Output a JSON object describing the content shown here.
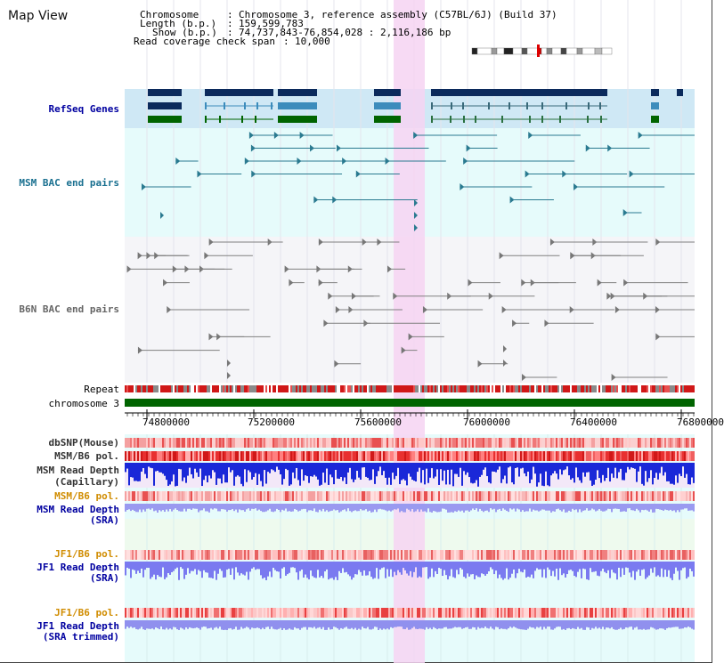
{
  "header": {
    "title": "Map View",
    "chromosome_label": "Chromosome",
    "chromosome_value": "Chromosome 3, reference assembly (C57BL/6J) (Build 37)",
    "length_label": "Length (b.p.)",
    "length_value": "159,599,783",
    "show_label": "Show (b.p.)",
    "show_value": "74,737,843-76,854,028 : 2,116,186 bp",
    "coverage_label": "Read coverage check span",
    "coverage_value": "10,000"
  },
  "tracks": {
    "refseq": "RefSeq Genes",
    "msm_bac": "MSM BAC end pairs",
    "b6n_bac": "B6N BAC end pairs",
    "repeat": "Repeat",
    "chromosome": "chromosome 3",
    "dbsnp": "dbSNP(Mouse)",
    "msm_b6_pol": "MSM/B6 pol.",
    "msm_depth_cap_1": "MSM Read Depth",
    "msm_depth_cap_2": "(Capillary)",
    "msm_b6_pol_sra": "MSM/B6 pol.",
    "msm_depth_sra_1": "MSM Read Depth",
    "msm_depth_sra_2": "(SRA)",
    "jf1_b6_pol": "JF1/B6 pol.",
    "jf1_depth_1": "JF1 Read Depth",
    "jf1_depth_2": "(SRA)",
    "jf1_b6_pol_trim": "JF1/B6 pol.",
    "jf1_trim_1": "JF1 Read Depth",
    "jf1_trim_2": "(SRA trimmed)"
  },
  "ruler": {
    "ticks": [
      "74800000",
      "75200000",
      "75600000",
      "76000000",
      "76400000",
      "76800000"
    ]
  },
  "colors": {
    "highlight": "#f6d4f2",
    "refseq_bg": "#cfe8f5",
    "cyan_bg": "#e6fbfb",
    "gene_dark": "#0b2a5c",
    "gene_mid": "#3c8cbc",
    "gene_green": "#006400",
    "msm_line": "#2a7a90",
    "b6n_line": "#808080",
    "chrom_bar": "#006400",
    "label_dark": "#333333",
    "label_blue": "#0000a0",
    "label_teal": "#1a7090",
    "label_orange": "#d08c00"
  }
}
